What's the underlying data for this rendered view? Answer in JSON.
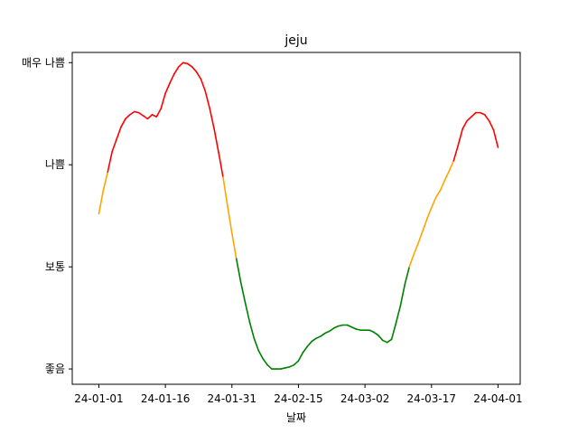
{
  "chart_data": {
    "type": "line",
    "title": "jeju",
    "xlabel": "날짜",
    "ylabel": "",
    "x_ticks": [
      "24-01-01",
      "24-01-16",
      "24-01-31",
      "24-02-15",
      "24-03-02",
      "24-03-17",
      "24-04-01"
    ],
    "y_ticks": [
      "좋음",
      "보통",
      "나쁨",
      "매우 나쁨"
    ],
    "ylim": [
      -0.15,
      3.1
    ],
    "xlim": [
      -3,
      47.5
    ],
    "grid": false,
    "legend": "none",
    "colors": {
      "good": "#008000",
      "moderate": "#ffa500",
      "bad": "#ff0000"
    },
    "thresholds": [
      1,
      2
    ],
    "series": [
      {
        "name": "",
        "x": [
          0,
          0.5,
          1,
          1.5,
          2,
          2.5,
          3,
          3.5,
          4,
          4.5,
          5,
          5.5,
          6,
          6.5,
          7,
          7.5,
          8,
          8.5,
          9,
          9.5,
          10,
          10.5,
          11,
          11.5,
          12,
          12.5,
          13,
          13.5,
          14,
          14.5,
          15,
          15.5,
          16,
          16.5,
          17,
          17.5,
          18,
          18.5,
          19,
          19.5,
          20,
          20.5,
          21,
          21.5,
          22,
          22.5,
          23,
          23.5,
          24,
          24.5,
          25,
          25.5,
          26,
          26.5,
          27,
          27.5,
          28,
          28.5,
          29,
          29.5,
          30,
          30.5,
          31,
          31.5,
          32,
          32.5,
          33,
          33.5,
          34,
          34.5,
          35,
          35.5,
          36,
          36.5,
          37,
          37.5,
          38,
          38.5,
          39,
          39.5,
          40,
          40.5,
          41,
          41.5,
          42,
          42.5,
          43,
          43.5,
          44,
          44.5,
          45
        ],
        "y": [
          1.52,
          1.75,
          1.93,
          2.13,
          2.25,
          2.37,
          2.45,
          2.49,
          2.52,
          2.51,
          2.48,
          2.45,
          2.49,
          2.47,
          2.55,
          2.7,
          2.8,
          2.89,
          2.96,
          3.0,
          2.99,
          2.96,
          2.91,
          2.84,
          2.72,
          2.55,
          2.35,
          2.12,
          1.88,
          1.6,
          1.33,
          1.08,
          0.85,
          0.65,
          0.46,
          0.3,
          0.18,
          0.1,
          0.04,
          0.0,
          0.0,
          0.0,
          0.01,
          0.02,
          0.04,
          0.08,
          0.16,
          0.22,
          0.27,
          0.3,
          0.32,
          0.35,
          0.37,
          0.4,
          0.42,
          0.43,
          0.43,
          0.41,
          0.39,
          0.38,
          0.38,
          0.38,
          0.36,
          0.33,
          0.28,
          0.26,
          0.29,
          0.45,
          0.62,
          0.83,
          1.0,
          1.12,
          1.23,
          1.35,
          1.47,
          1.58,
          1.68,
          1.75,
          1.85,
          1.94,
          2.04,
          2.19,
          2.35,
          2.43,
          2.47,
          2.51,
          2.51,
          2.49,
          2.43,
          2.34,
          2.17
        ]
      }
    ]
  }
}
